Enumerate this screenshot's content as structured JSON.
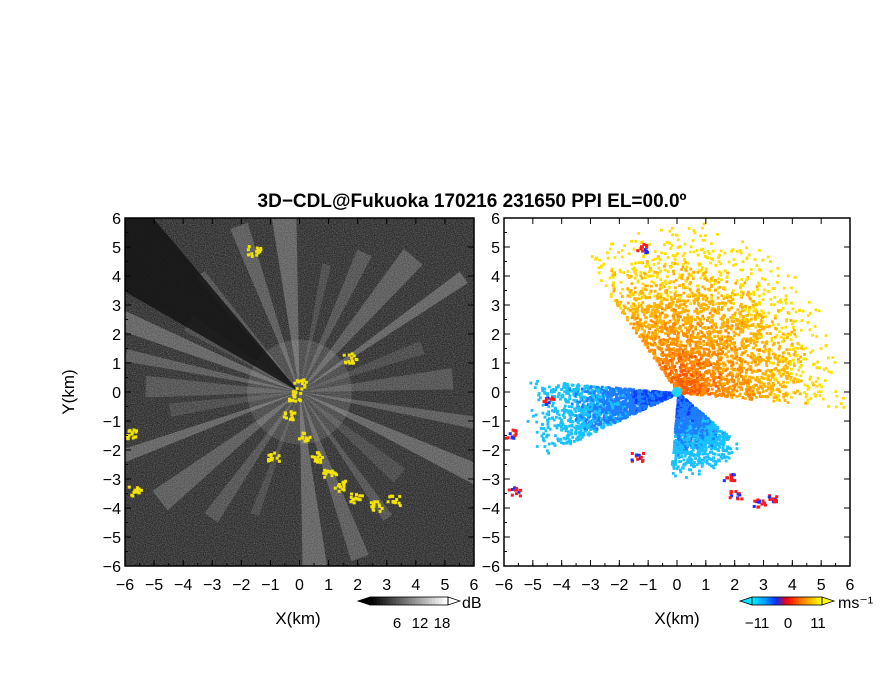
{
  "title": "3D−CDL@Fukuoka 170216 231650 PPI EL=00.0º",
  "chart_data": [
    {
      "type": "heatmap",
      "panel": "left",
      "variable": "reflectivity (grayscale intensity) with yellow clutter/hard-target echoes",
      "xlabel": "X(km)",
      "ylabel": "Y(km)",
      "xlim": [
        -6,
        6
      ],
      "ylim": [
        -6,
        6
      ],
      "xticks": [
        "−6",
        "−5",
        "−4",
        "−3",
        "−2",
        "−1",
        "0",
        "1",
        "2",
        "3",
        "4",
        "5",
        "6"
      ],
      "yticks": [
        "−6",
        "−5",
        "−4",
        "−3",
        "−2",
        "−1",
        "0",
        "1",
        "2",
        "3",
        "4",
        "5",
        "6"
      ],
      "grid": false,
      "background_color": "#2a2a2a",
      "highlight_color": "#f2e300",
      "colorbar": {
        "unit": "dB",
        "ticks": [
          "6",
          "12",
          "18"
        ],
        "range": [
          0,
          24
        ],
        "colors": [
          "#000000",
          "#ffffff"
        ]
      },
      "radial_beams_deg_from_north": [
        12,
        25,
        40,
        55,
        70,
        85,
        100,
        115,
        130,
        145,
        160,
        175,
        200,
        215,
        232,
        250,
        262,
        272,
        282,
        292,
        302,
        320,
        340,
        355
      ],
      "blank_sector_deg": [
        300,
        320
      ],
      "yellow_echoes_km": [
        {
          "x": -0.4,
          "y": -0.8
        },
        {
          "x": 0.1,
          "y": -1.5
        },
        {
          "x": 0.6,
          "y": -2.2
        },
        {
          "x": 1.0,
          "y": -2.8
        },
        {
          "x": 1.4,
          "y": -3.2
        },
        {
          "x": 1.9,
          "y": -3.6
        },
        {
          "x": 2.6,
          "y": -3.9
        },
        {
          "x": 3.2,
          "y": -3.7
        },
        {
          "x": -0.0,
          "y": 0.3
        },
        {
          "x": -5.8,
          "y": -1.4
        },
        {
          "x": -5.7,
          "y": -3.4
        },
        {
          "x": -1.6,
          "y": 4.9
        },
        {
          "x": 1.7,
          "y": 1.2
        },
        {
          "x": -0.9,
          "y": -2.2
        },
        {
          "x": -0.2,
          "y": -0.1
        }
      ]
    },
    {
      "type": "heatmap",
      "panel": "right",
      "variable": "radial velocity",
      "xlabel": "X(km)",
      "ylabel": "",
      "xlim": [
        -6,
        6
      ],
      "ylim": [
        -6,
        6
      ],
      "xticks": [
        "−6",
        "−5",
        "−4",
        "−3",
        "−2",
        "−1",
        "0",
        "1",
        "2",
        "3",
        "4",
        "5",
        "6"
      ],
      "yticks": [
        "−6",
        "−5",
        "−4",
        "−3",
        "−2",
        "−1",
        "0",
        "1",
        "2",
        "3",
        "4",
        "5",
        "6"
      ],
      "grid": false,
      "background_color": "#ffffff",
      "colorbar": {
        "unit": "ms⁻¹",
        "ticks": [
          "−11",
          "0",
          "11"
        ],
        "range": [
          -14,
          14
        ],
        "colors": [
          "#00e5ff",
          "#00a0ff",
          "#0030ff",
          "#ff0000",
          "#ff6000",
          "#ffb000",
          "#ffff00"
        ]
      },
      "sectors": [
        {
          "name_deg": [
            -35,
            95
          ],
          "sign": "positive (away)",
          "colors": [
            "#ff5a00",
            "#ff8c00",
            "#ffb300",
            "#ffe000"
          ],
          "max_range_km": 6.0
        },
        {
          "name_deg": [
            245,
            275
          ],
          "sign": "negative (toward)",
          "colors": [
            "#0a3cff",
            "#1e7cff",
            "#19c2ff"
          ],
          "max_range_km": 5.4
        },
        {
          "name_deg": [
            130,
            185
          ],
          "sign": "negative (toward)",
          "colors": [
            "#0a3cff",
            "#1e7cff",
            "#19c2ff"
          ],
          "max_range_km": 3.0
        }
      ],
      "red_echoes_km": [
        {
          "x": -5.8,
          "y": -1.4
        },
        {
          "x": -5.7,
          "y": -3.4
        },
        {
          "x": 2.0,
          "y": -3.5
        },
        {
          "x": 2.8,
          "y": -3.8
        },
        {
          "x": 3.3,
          "y": -3.6
        },
        {
          "x": -1.4,
          "y": -2.2
        },
        {
          "x": -1.2,
          "y": 5.0
        },
        {
          "x": 1.8,
          "y": -2.9
        },
        {
          "x": -4.5,
          "y": -0.3
        }
      ]
    }
  ]
}
